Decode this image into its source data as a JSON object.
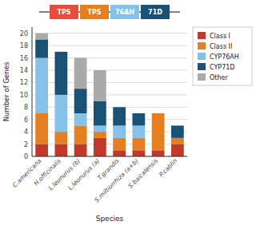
{
  "chart_data": {
    "type": "bar",
    "stacked": true,
    "categories": [
      "C.americana",
      "H.officinalis",
      "L.leonurus (b)",
      "L.leonurus (a)",
      "T.grandis",
      "S.miltiorrhiza (a+b)",
      "S.baicalensis",
      "P.cablin"
    ],
    "series": [
      {
        "name": "Class I",
        "color": "#c0392b",
        "values": [
          2,
          2,
          2,
          3,
          1,
          1,
          1,
          2
        ]
      },
      {
        "name": "Class II",
        "color": "#e67e22",
        "values": [
          5,
          2,
          3,
          1,
          2,
          2,
          6,
          1
        ]
      },
      {
        "name": "CYP76AH",
        "color": "#85c1e9",
        "values": [
          9,
          6,
          2,
          1,
          2,
          2,
          0,
          0
        ]
      },
      {
        "name": "CYP71D",
        "color": "#1a5276",
        "values": [
          3,
          7,
          4,
          4,
          3,
          2,
          0,
          2
        ]
      },
      {
        "name": "Other",
        "color": "#aaaaaa",
        "values": [
          1,
          0,
          5,
          5,
          0,
          0,
          0,
          0
        ]
      }
    ],
    "xlabel": "Species",
    "ylabel": "Number of Genes",
    "ylim": [
      0,
      21
    ],
    "yticks": [
      0,
      2,
      4,
      6,
      8,
      10,
      12,
      14,
      16,
      18,
      20
    ],
    "grid": true,
    "legend": "right",
    "annotations": [
      {
        "text": "TPS",
        "color": "#e74c3c"
      },
      {
        "text": "TPS",
        "color": "#e67e22"
      },
      {
        "text": "76AH",
        "color": "#85c1e9"
      },
      {
        "text": "71D",
        "color": "#1a5276"
      }
    ]
  }
}
